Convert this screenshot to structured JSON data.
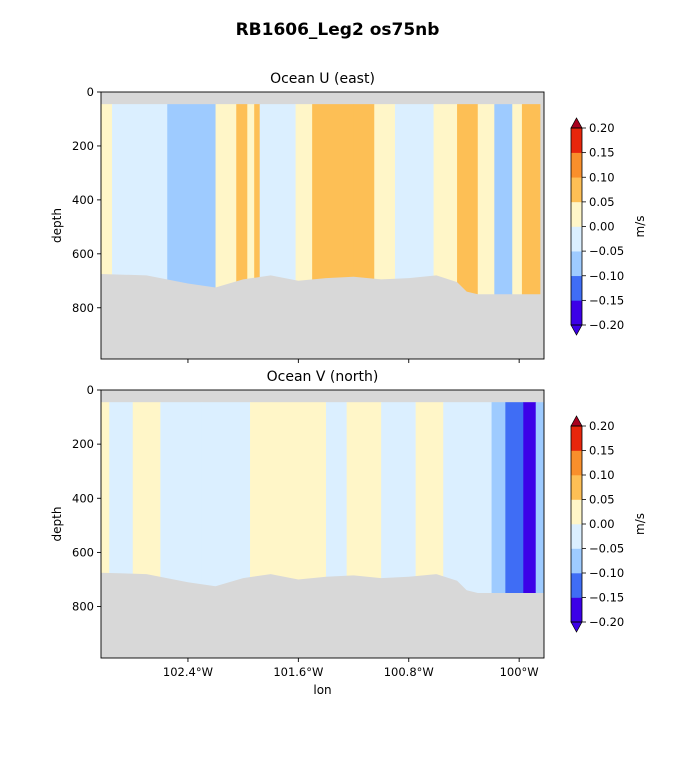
{
  "figure": {
    "title": "RB1606_Leg2 os75nb"
  },
  "colors": {
    "land": "#d8d8d8",
    "levels": [
      "#3c00e8",
      "#3f6df5",
      "#9ecbff",
      "#dbefff",
      "#fff6c8",
      "#fdbf55",
      "#f98f2b",
      "#e8260c"
    ],
    "over": "#a8001e",
    "under": "#3c00e8"
  },
  "chart_data": [
    {
      "type": "heatmap",
      "title": "Ocean U (east)",
      "ylabel": "depth",
      "xlabel": "",
      "x_ticks": [
        "102.4°W",
        "101.6°W",
        "100.8°W",
        "100°W"
      ],
      "x_tick_values": [
        -102.4,
        -101.6,
        -100.8,
        -100.0
      ],
      "xlim": [
        -103.03,
        -99.82
      ],
      "y_ticks": [
        "0",
        "200",
        "400",
        "600",
        "800"
      ],
      "y_tick_values": [
        0,
        200,
        400,
        600,
        800
      ],
      "ylim": [
        990,
        0
      ],
      "colorbar": {
        "label": "m/s",
        "levels": [
          -0.2,
          -0.15,
          -0.1,
          -0.05,
          0.0,
          0.05,
          0.1,
          0.15,
          0.2
        ],
        "tick_labels": [
          "−0.20",
          "−0.15",
          "−0.10",
          "−0.05",
          "0.00",
          "0.05",
          "0.10",
          "0.15",
          "0.20"
        ],
        "extend": "both"
      },
      "bands": [
        {
          "x0": -103.03,
          "x1": -102.95,
          "value": 0.03
        },
        {
          "x0": -102.95,
          "x1": -102.55,
          "value": -0.01
        },
        {
          "x0": -102.55,
          "x1": -102.2,
          "value": -0.06
        },
        {
          "x0": -102.2,
          "x1": -102.05,
          "value": 0.02
        },
        {
          "x0": -102.05,
          "x1": -101.97,
          "value": 0.07
        },
        {
          "x0": -101.97,
          "x1": -101.92,
          "value": 0.02
        },
        {
          "x0": -101.92,
          "x1": -101.88,
          "value": 0.08
        },
        {
          "x0": -101.88,
          "x1": -101.62,
          "value": -0.02
        },
        {
          "x0": -101.62,
          "x1": -101.5,
          "value": 0.03
        },
        {
          "x0": -101.5,
          "x1": -101.2,
          "value": 0.08
        },
        {
          "x0": -101.2,
          "x1": -101.05,
          "value": 0.09
        },
        {
          "x0": -101.05,
          "x1": -100.9,
          "value": 0.03
        },
        {
          "x0": -100.9,
          "x1": -100.62,
          "value": -0.01
        },
        {
          "x0": -100.62,
          "x1": -100.45,
          "value": 0.03
        },
        {
          "x0": -100.45,
          "x1": -100.3,
          "value": 0.08
        },
        {
          "x0": -100.3,
          "x1": -100.18,
          "value": 0.02
        },
        {
          "x0": -100.18,
          "x1": -100.05,
          "value": -0.06
        },
        {
          "x0": -100.05,
          "x1": -99.98,
          "value": 0.03
        },
        {
          "x0": -99.98,
          "x1": -99.85,
          "value": 0.08
        }
      ],
      "bottom_depth": [
        [
          -103.03,
          675
        ],
        [
          -102.7,
          680
        ],
        [
          -102.4,
          710
        ],
        [
          -102.2,
          725
        ],
        [
          -102.0,
          695
        ],
        [
          -101.8,
          680
        ],
        [
          -101.6,
          700
        ],
        [
          -101.4,
          690
        ],
        [
          -101.2,
          685
        ],
        [
          -101.0,
          695
        ],
        [
          -100.8,
          690
        ],
        [
          -100.6,
          680
        ],
        [
          -100.45,
          705
        ],
        [
          -100.38,
          740
        ],
        [
          -100.3,
          750
        ],
        [
          -99.82,
          750
        ]
      ]
    },
    {
      "type": "heatmap",
      "title": "Ocean V (north)",
      "ylabel": "depth",
      "xlabel": "lon",
      "x_ticks": [
        "102.4°W",
        "101.6°W",
        "100.8°W",
        "100°W"
      ],
      "x_tick_values": [
        -102.4,
        -101.6,
        -100.8,
        -100.0
      ],
      "xlim": [
        -103.03,
        -99.82
      ],
      "y_ticks": [
        "0",
        "200",
        "400",
        "600",
        "800"
      ],
      "y_tick_values": [
        0,
        200,
        400,
        600,
        800
      ],
      "ylim": [
        990,
        0
      ],
      "colorbar": {
        "label": "m/s",
        "levels": [
          -0.2,
          -0.15,
          -0.1,
          -0.05,
          0.0,
          0.05,
          0.1,
          0.15,
          0.2
        ],
        "tick_labels": [
          "−0.20",
          "−0.15",
          "−0.10",
          "−0.05",
          "0.00",
          "0.05",
          "0.10",
          "0.15",
          "0.20"
        ],
        "extend": "both"
      },
      "bands": [
        {
          "x0": -103.03,
          "x1": -102.97,
          "value": 0.02
        },
        {
          "x0": -102.97,
          "x1": -102.8,
          "value": -0.02
        },
        {
          "x0": -102.8,
          "x1": -102.6,
          "value": 0.02
        },
        {
          "x0": -102.6,
          "x1": -102.3,
          "value": -0.01
        },
        {
          "x0": -102.3,
          "x1": -101.95,
          "value": -0.02
        },
        {
          "x0": -101.95,
          "x1": -101.8,
          "value": 0.01
        },
        {
          "x0": -101.8,
          "x1": -101.4,
          "value": 0.02
        },
        {
          "x0": -101.4,
          "x1": -101.25,
          "value": -0.01
        },
        {
          "x0": -101.25,
          "x1": -101.0,
          "value": 0.02
        },
        {
          "x0": -101.0,
          "x1": -100.75,
          "value": -0.02
        },
        {
          "x0": -100.75,
          "x1": -100.55,
          "value": 0.02
        },
        {
          "x0": -100.55,
          "x1": -100.2,
          "value": -0.03
        },
        {
          "x0": -100.2,
          "x1": -100.1,
          "value": -0.07
        },
        {
          "x0": -100.1,
          "x1": -99.97,
          "value": -0.12
        },
        {
          "x0": -99.97,
          "x1": -99.88,
          "value": -0.18
        },
        {
          "x0": -99.88,
          "x1": -99.82,
          "value": -0.07
        }
      ],
      "bottom_depth": [
        [
          -103.03,
          675
        ],
        [
          -102.7,
          680
        ],
        [
          -102.4,
          710
        ],
        [
          -102.2,
          725
        ],
        [
          -102.0,
          695
        ],
        [
          -101.8,
          680
        ],
        [
          -101.6,
          700
        ],
        [
          -101.4,
          690
        ],
        [
          -101.2,
          685
        ],
        [
          -101.0,
          695
        ],
        [
          -100.8,
          690
        ],
        [
          -100.6,
          680
        ],
        [
          -100.45,
          705
        ],
        [
          -100.38,
          740
        ],
        [
          -100.3,
          750
        ],
        [
          -99.82,
          750
        ]
      ]
    }
  ]
}
